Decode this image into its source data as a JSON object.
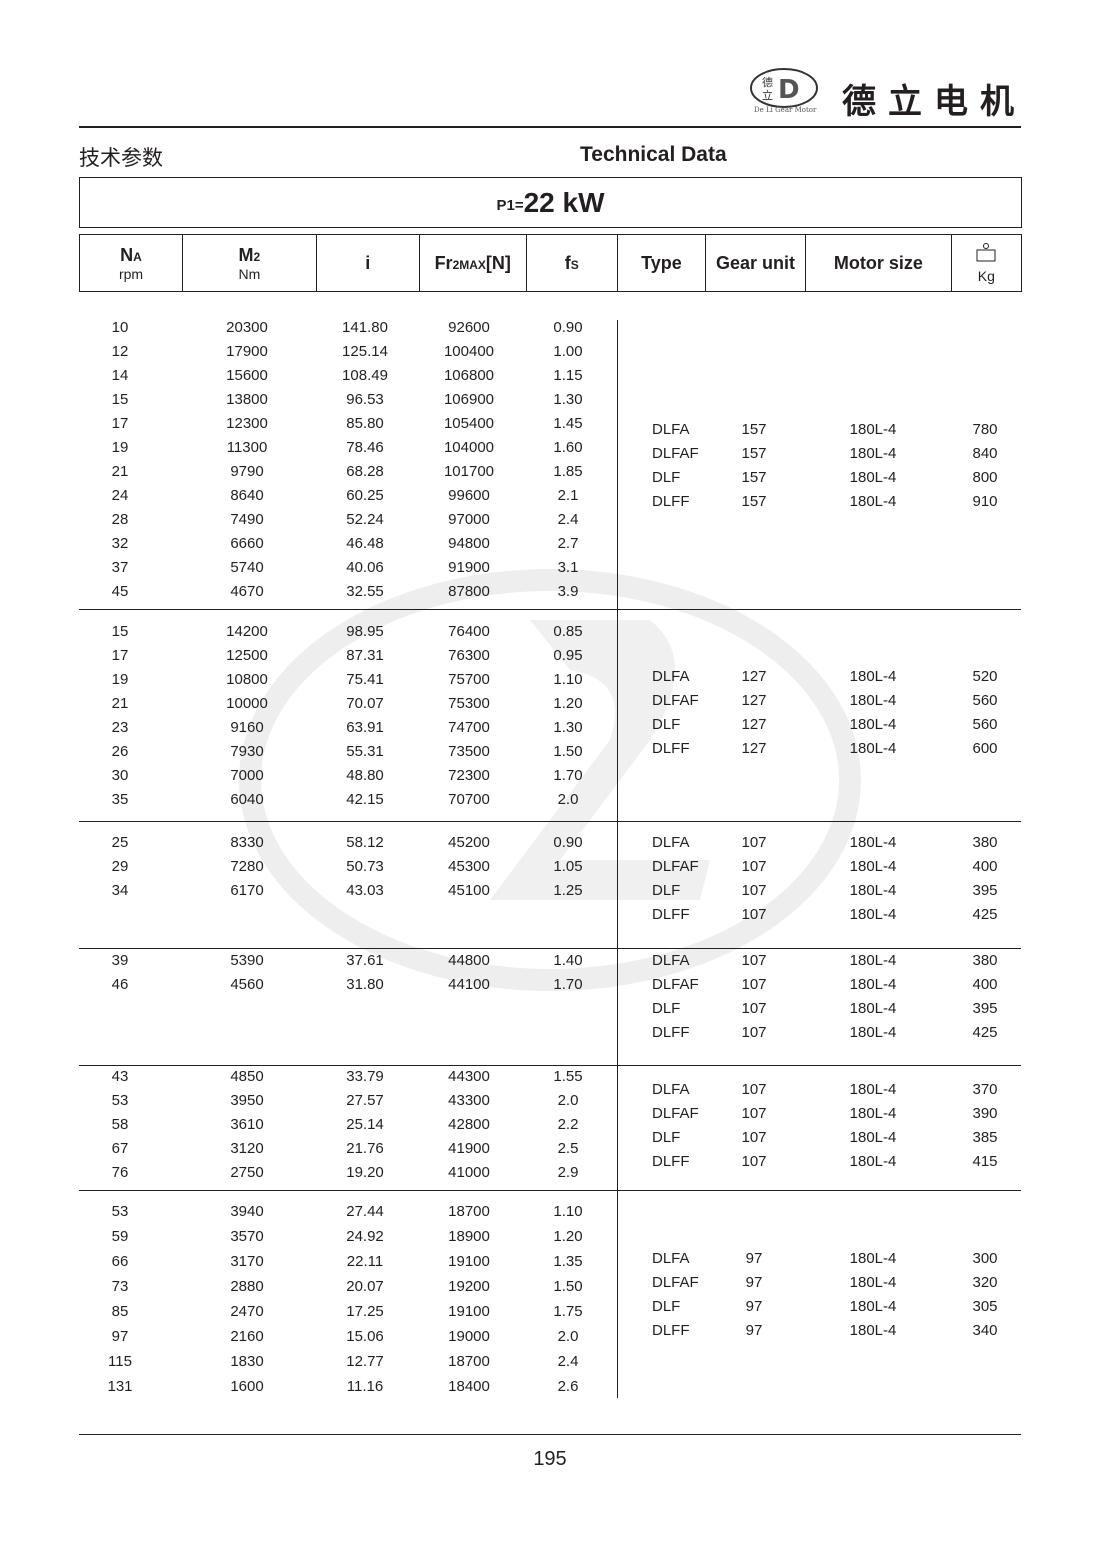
{
  "header": {
    "brand": "德立电机",
    "logo_text": "De Li Gear Motor",
    "logo_chars": "德立",
    "title_cn": "技术参数",
    "title_en": "Technical Data"
  },
  "power": {
    "label": "P1=",
    "value": "22 kW"
  },
  "columns": [
    {
      "main": "N",
      "sub": "A",
      "unit": "rpm"
    },
    {
      "main": "M",
      "sub": "2",
      "unit": "Nm"
    },
    {
      "main": "i",
      "sub": "",
      "unit": ""
    },
    {
      "main": "Fr",
      "sub": "2MAX",
      "suffix": "[N]",
      "unit": ""
    },
    {
      "main": "f",
      "sub": "S",
      "unit": ""
    },
    {
      "main": "Type",
      "sub": "",
      "unit": ""
    },
    {
      "main": "Gear unit",
      "sub": "",
      "unit": ""
    },
    {
      "main": "Motor size",
      "sub": "",
      "unit": ""
    },
    {
      "main": "",
      "sub": "",
      "unit": "Kg",
      "icon": "weight-icon"
    }
  ],
  "groups": [
    {
      "rows": [
        [
          "10",
          "20300",
          "141.80",
          "92600",
          "0.90"
        ],
        [
          "12",
          "17900",
          "125.14",
          "100400",
          "1.00"
        ],
        [
          "14",
          "15600",
          "108.49",
          "106800",
          "1.15"
        ],
        [
          "15",
          "13800",
          "96.53",
          "106900",
          "1.30"
        ],
        [
          "17",
          "12300",
          "85.80",
          "105400",
          "1.45"
        ],
        [
          "19",
          "11300",
          "78.46",
          "104000",
          "1.60"
        ],
        [
          "21",
          "9790",
          "68.28",
          "101700",
          "1.85"
        ],
        [
          "24",
          "8640",
          "60.25",
          "99600",
          "2.1"
        ],
        [
          "28",
          "7490",
          "52.24",
          "97000",
          "2.4"
        ],
        [
          "32",
          "6660",
          "46.48",
          "94800",
          "2.7"
        ],
        [
          "37",
          "5740",
          "40.06",
          "91900",
          "3.1"
        ],
        [
          "45",
          "4670",
          "32.55",
          "87800",
          "3.9"
        ]
      ],
      "models": [
        [
          "DLFA",
          "157",
          "180L-4",
          "780"
        ],
        [
          "DLFAF",
          "157",
          "180L-4",
          "840"
        ],
        [
          "DLF",
          "157",
          "180L-4",
          "800"
        ],
        [
          "DLFF",
          "157",
          "180L-4",
          "910"
        ]
      ]
    },
    {
      "rows": [
        [
          "15",
          "14200",
          "98.95",
          "76400",
          "0.85"
        ],
        [
          "17",
          "12500",
          "87.31",
          "76300",
          "0.95"
        ],
        [
          "19",
          "10800",
          "75.41",
          "75700",
          "1.10"
        ],
        [
          "21",
          "10000",
          "70.07",
          "75300",
          "1.20"
        ],
        [
          "23",
          "9160",
          "63.91",
          "74700",
          "1.30"
        ],
        [
          "26",
          "7930",
          "55.31",
          "73500",
          "1.50"
        ],
        [
          "30",
          "7000",
          "48.80",
          "72300",
          "1.70"
        ],
        [
          "35",
          "6040",
          "42.15",
          "70700",
          "2.0"
        ]
      ],
      "models": [
        [
          "DLFA",
          "127",
          "180L-4",
          "520"
        ],
        [
          "DLFAF",
          "127",
          "180L-4",
          "560"
        ],
        [
          "DLF",
          "127",
          "180L-4",
          "560"
        ],
        [
          "DLFF",
          "127",
          "180L-4",
          "600"
        ]
      ]
    },
    {
      "rows": [
        [
          "25",
          "8330",
          "58.12",
          "45200",
          "0.90"
        ],
        [
          "29",
          "7280",
          "50.73",
          "45300",
          "1.05"
        ],
        [
          "34",
          "6170",
          "43.03",
          "45100",
          "1.25"
        ]
      ],
      "models": [
        [
          "DLFA",
          "107",
          "180L-4",
          "380"
        ],
        [
          "DLFAF",
          "107",
          "180L-4",
          "400"
        ],
        [
          "DLF",
          "107",
          "180L-4",
          "395"
        ],
        [
          "DLFF",
          "107",
          "180L-4",
          "425"
        ]
      ]
    },
    {
      "rows": [
        [
          "39",
          "5390",
          "37.61",
          "44800",
          "1.40"
        ],
        [
          "46",
          "4560",
          "31.80",
          "44100",
          "1.70"
        ]
      ],
      "models": [
        [
          "DLFA",
          "107",
          "180L-4",
          "380"
        ],
        [
          "DLFAF",
          "107",
          "180L-4",
          "400"
        ],
        [
          "DLF",
          "107",
          "180L-4",
          "395"
        ],
        [
          "DLFF",
          "107",
          "180L-4",
          "425"
        ]
      ]
    },
    {
      "rows": [
        [
          "43",
          "4850",
          "33.79",
          "44300",
          "1.55"
        ],
        [
          "53",
          "3950",
          "27.57",
          "43300",
          "2.0"
        ],
        [
          "58",
          "3610",
          "25.14",
          "42800",
          "2.2"
        ],
        [
          "67",
          "3120",
          "21.76",
          "41900",
          "2.5"
        ],
        [
          "76",
          "2750",
          "19.20",
          "41000",
          "2.9"
        ]
      ],
      "models": [
        [
          "DLFA",
          "107",
          "180L-4",
          "370"
        ],
        [
          "DLFAF",
          "107",
          "180L-4",
          "390"
        ],
        [
          "DLF",
          "107",
          "180L-4",
          "385"
        ],
        [
          "DLFF",
          "107",
          "180L-4",
          "415"
        ]
      ]
    },
    {
      "rows": [
        [
          "53",
          "3940",
          "27.44",
          "18700",
          "1.10"
        ],
        [
          "59",
          "3570",
          "24.92",
          "18900",
          "1.20"
        ],
        [
          "66",
          "3170",
          "22.11",
          "19100",
          "1.35"
        ],
        [
          "73",
          "2880",
          "20.07",
          "19200",
          "1.50"
        ],
        [
          "85",
          "2470",
          "17.25",
          "19100",
          "1.75"
        ],
        [
          "97",
          "2160",
          "15.06",
          "19000",
          "2.0"
        ],
        [
          "115",
          "1830",
          "12.77",
          "18700",
          "2.4"
        ],
        [
          "131",
          "1600",
          "11.16",
          "18400",
          "2.6"
        ]
      ],
      "models": [
        [
          "DLFA",
          "97",
          "180L-4",
          "300"
        ],
        [
          "DLFAF",
          "97",
          "180L-4",
          "320"
        ],
        [
          "DLF",
          "97",
          "180L-4",
          "305"
        ],
        [
          "DLFF",
          "97",
          "180L-4",
          "340"
        ]
      ]
    }
  ],
  "footer": {
    "page": "195"
  }
}
